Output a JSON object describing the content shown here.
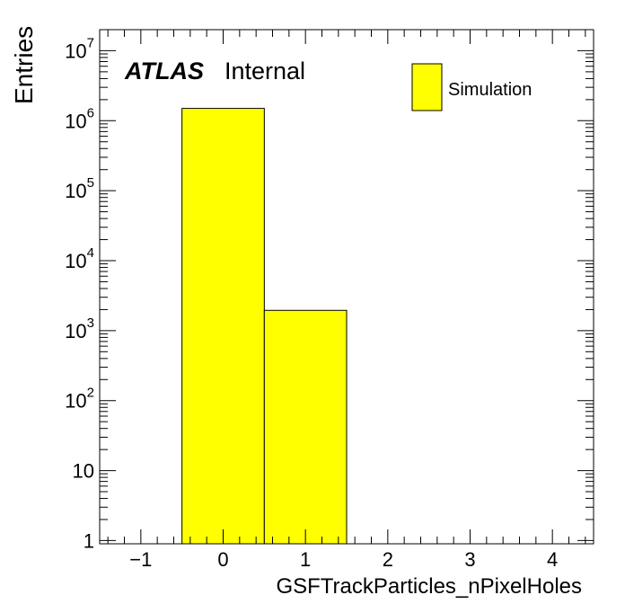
{
  "chart_data": {
    "type": "bar",
    "ylabel": "Entries",
    "xlabel": "GSFTrackParticles_nPixelHoles",
    "xlim": [
      -1.5,
      4.5
    ],
    "ylim": [
      0.9,
      20000000
    ],
    "yscale": "log",
    "x_ticks": [
      {
        "value": -1,
        "label": "−1"
      },
      {
        "value": 0,
        "label": "0"
      },
      {
        "value": 1,
        "label": "1"
      },
      {
        "value": 2,
        "label": "2"
      },
      {
        "value": 3,
        "label": "3"
      },
      {
        "value": 4,
        "label": "4"
      }
    ],
    "y_ticks": [
      {
        "value": 1,
        "base": "1",
        "exp": ""
      },
      {
        "value": 10,
        "base": "10",
        "exp": ""
      },
      {
        "value": 100,
        "base": "10",
        "exp": "2"
      },
      {
        "value": 1000,
        "base": "10",
        "exp": "3"
      },
      {
        "value": 10000,
        "base": "10",
        "exp": "4"
      },
      {
        "value": 100000,
        "base": "10",
        "exp": "5"
      },
      {
        "value": 1000000,
        "base": "10",
        "exp": "6"
      },
      {
        "value": 10000000,
        "base": "10",
        "exp": "7"
      }
    ],
    "bins": [
      {
        "low": -0.5,
        "high": 0.5,
        "value": 1500000
      },
      {
        "low": 0.5,
        "high": 1.5,
        "value": 1950
      }
    ],
    "series": [
      {
        "name": "Simulation",
        "color": "#ffff00"
      }
    ],
    "legend_position": "top-right",
    "annotations": {
      "atlas": "ATLAS",
      "status": "Internal"
    },
    "grid": false
  }
}
